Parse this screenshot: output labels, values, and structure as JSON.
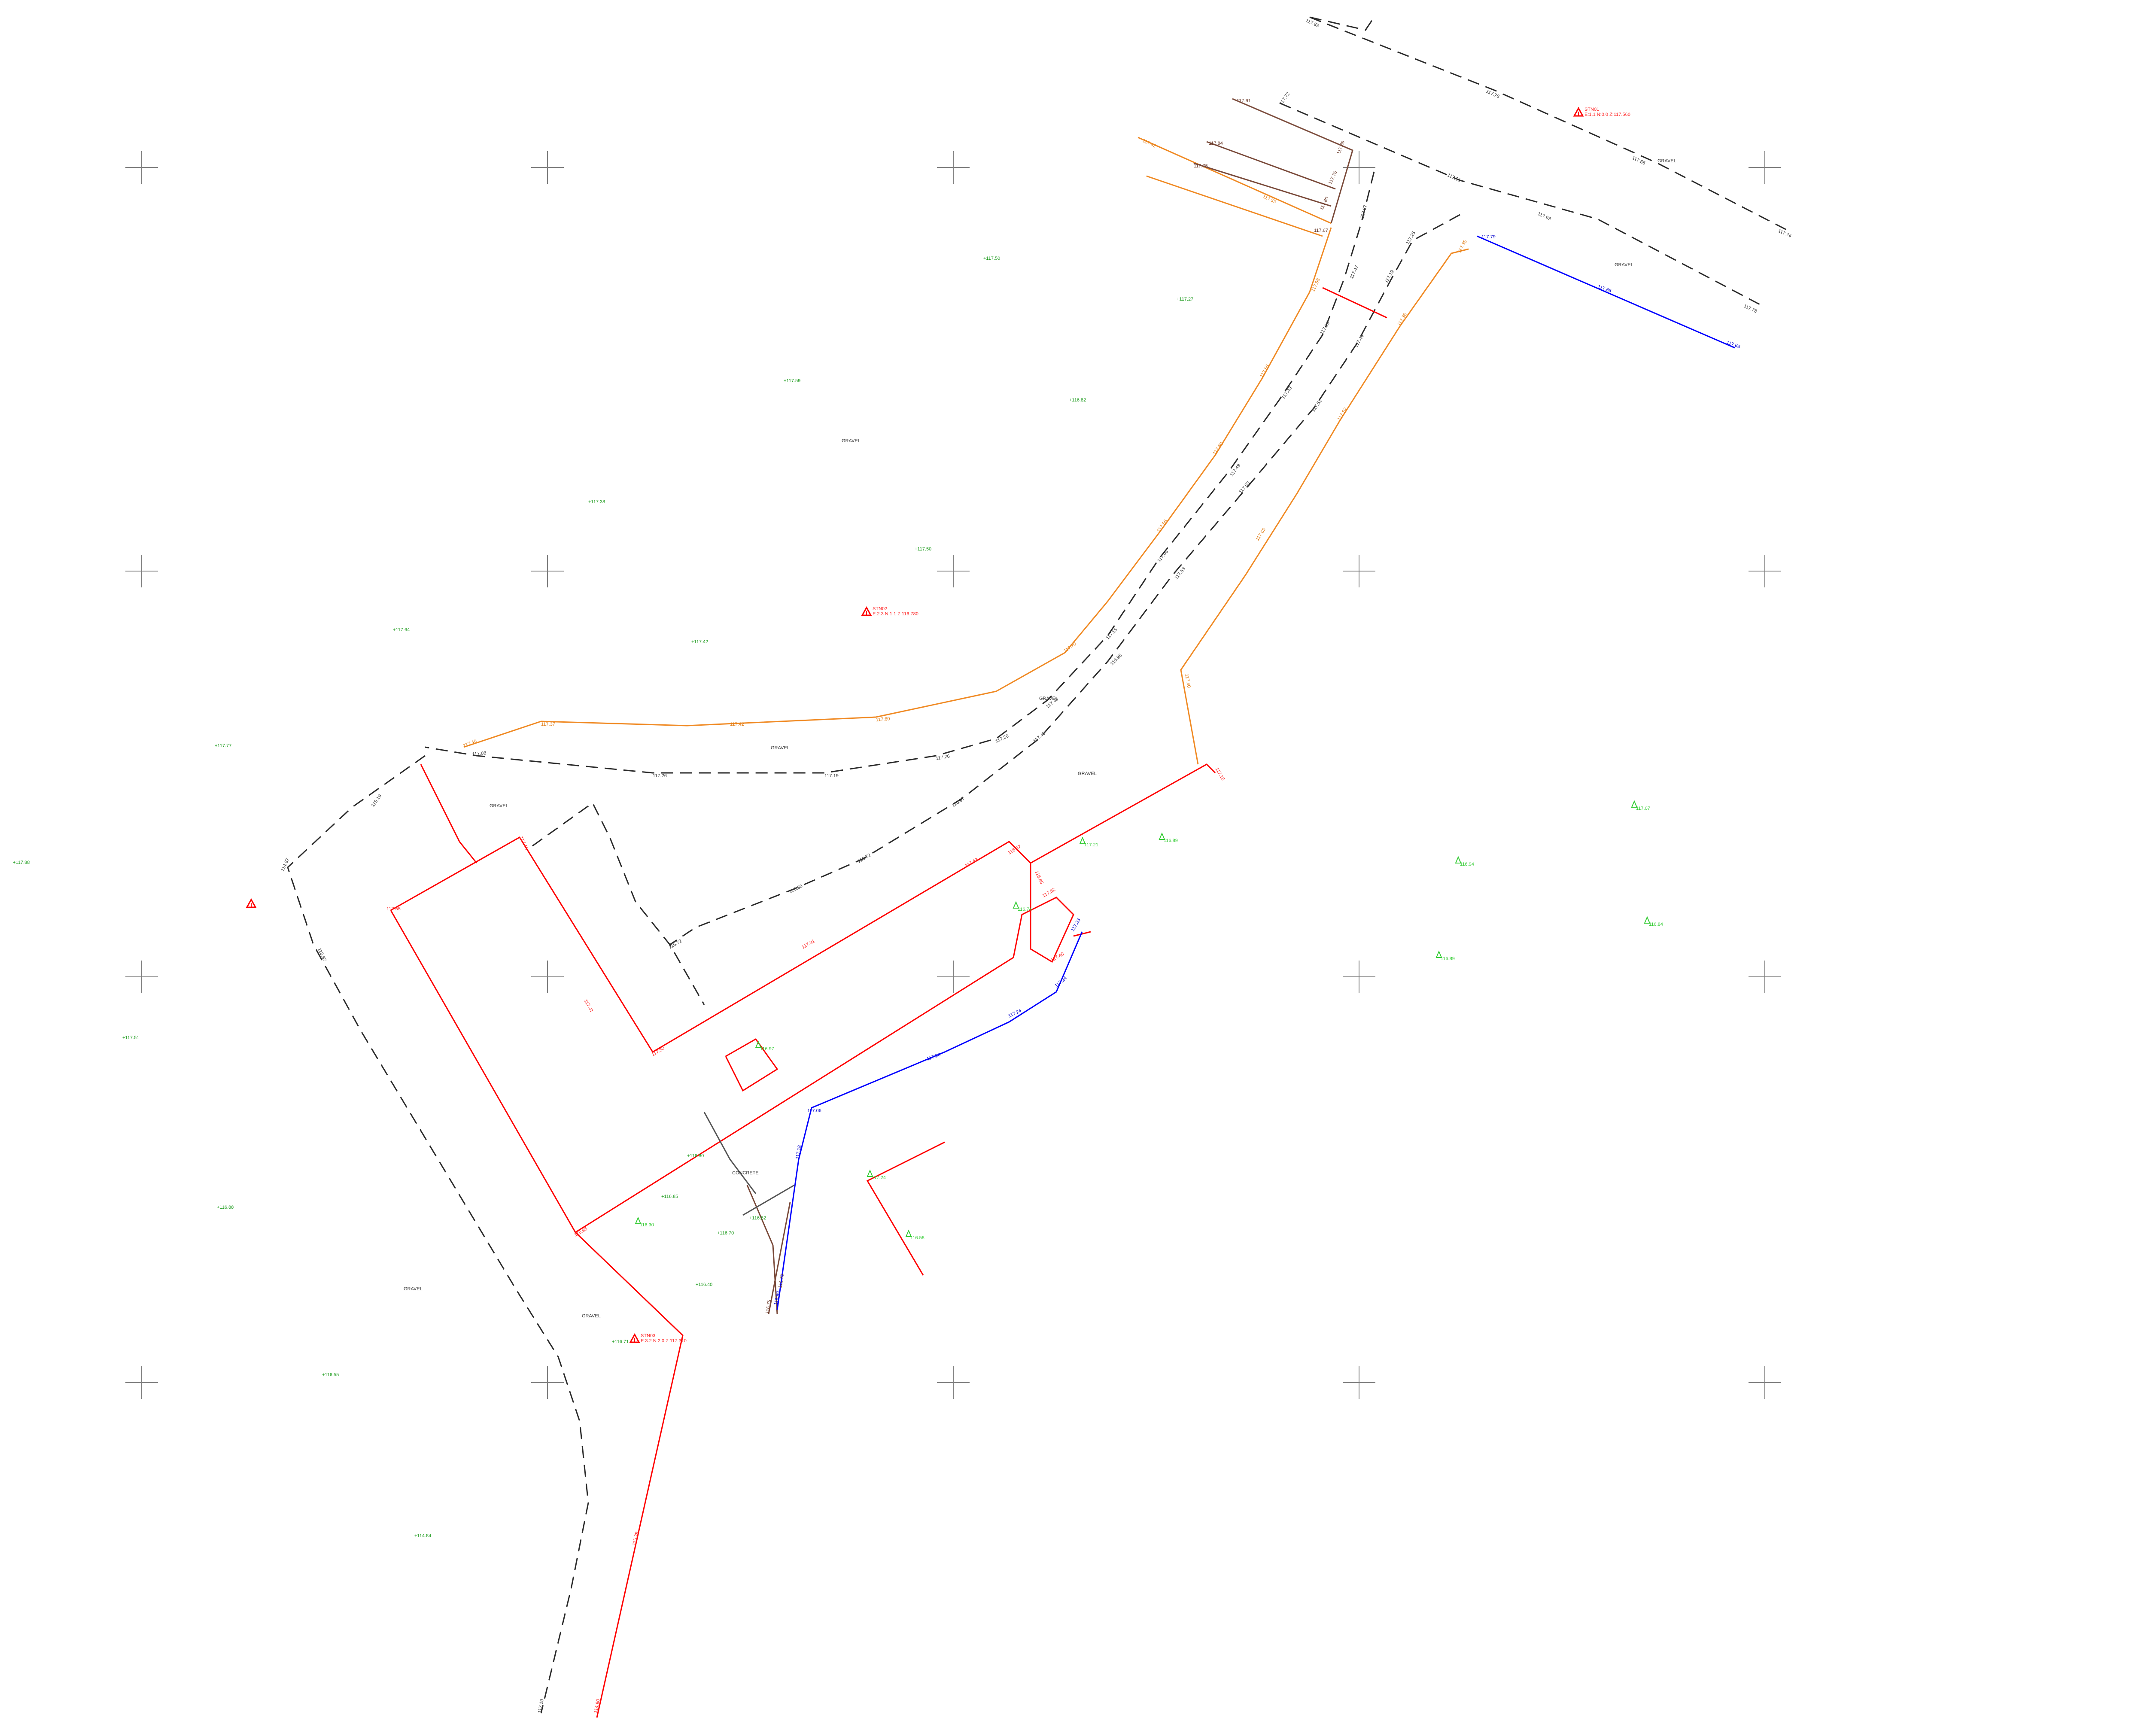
{
  "stations": [
    {
      "id": "STN01",
      "sub": "E:1.1  N:0.0  Z:117.560",
      "label_color": "#ff2222"
    },
    {
      "id": "STN02",
      "sub": "E:2.3  N:1.1  Z:116.780",
      "label_color": "#ff2222"
    },
    {
      "id": "STN03",
      "sub": "E:3.2  N:2.0  Z:117.310",
      "label_color": "#ff2222"
    },
    {
      "id": "",
      "sub": "",
      "label_color": "#ff2222"
    }
  ],
  "surface_labels": [
    "GRAVEL",
    "GRAVEL",
    "GRAVEL",
    "GRAVEL",
    "GRAVEL",
    "GRAVEL",
    "GRAVEL",
    "GRAVEL",
    "GRAVEL",
    "CONCRETE"
  ],
  "spot_heights": [
    "+117.50",
    "+117.27",
    "+117.59",
    "+116.82",
    "+117.38",
    "+117.50",
    "+117.64",
    "+117.42",
    "+117.77",
    "+117.88",
    "+117.51",
    "+116.88",
    "+116.55",
    "+114.84",
    "+116.71",
    "+116.40",
    "+116.70",
    "+116.82",
    "+116.85",
    "+116.80"
  ],
  "tree_labels": [
    "117.07",
    "116.89",
    "116.94",
    "116.84",
    "116.89",
    "117.21",
    "116.74",
    "116.97",
    "116.30",
    "117.24",
    "116.58"
  ],
  "line_levels_black": [
    "117.83",
    "117.76",
    "117.66",
    "117.74",
    "117.72",
    "117.61",
    "117.93",
    "117.78",
    "117.67",
    "117.47",
    "117.23",
    "117.43",
    "117.49",
    "117.06",
    "117.55",
    "117.43",
    "117.30",
    "117.26",
    "117.19",
    "117.26",
    "117.08",
    "117.25",
    "117.19",
    "117.44",
    "117.51",
    "117.03",
    "117.53",
    "116.96",
    "117.45",
    "116.97",
    "116.72",
    "116.30",
    "115.72",
    "115.19",
    "114.87",
    "115.87",
    "117.19"
  ],
  "line_levels_red": [
    "117.43",
    "117.31",
    "117.55",
    "117.45",
    "117.41",
    "117.30",
    "116.97",
    "116.45",
    "116.93",
    "115.29",
    "114.90",
    "117.52",
    "117.40",
    "117.18"
  ],
  "line_levels_orange": [
    "117.58",
    "117.55",
    "117.60",
    "117.65",
    "117.70",
    "117.60",
    "117.42",
    "117.37",
    "117.40",
    "117.35",
    "117.36",
    "117.52",
    "117.65",
    "117.40",
    "117.42",
    "117.55"
  ],
  "line_levels_blue": [
    "117.79",
    "117.86",
    "117.63",
    "117.33",
    "117.24",
    "117.24",
    "117.20",
    "117.06",
    "117.18",
    "116.99"
  ],
  "line_levels_brown": [
    "117.91",
    "117.89",
    "117.84",
    "117.76",
    "117.75",
    "117.80",
    "117.67",
    "116.75",
    "116.70"
  ],
  "colors": {
    "boundary_red": "#ff0000",
    "road_edge_orange": "#f08a24",
    "dashed_black": "#2b2b2b",
    "drain_blue": "#0000ff",
    "fence_brown": "#7a4a3a",
    "spot_green": "#1a9a1a",
    "tree_lightgreen": "#33cc33",
    "grid_grey": "#7f7f7f"
  },
  "icons": [
    "station-triangle-icon",
    "grid-cross-icon",
    "tree-symbol-icon"
  ]
}
